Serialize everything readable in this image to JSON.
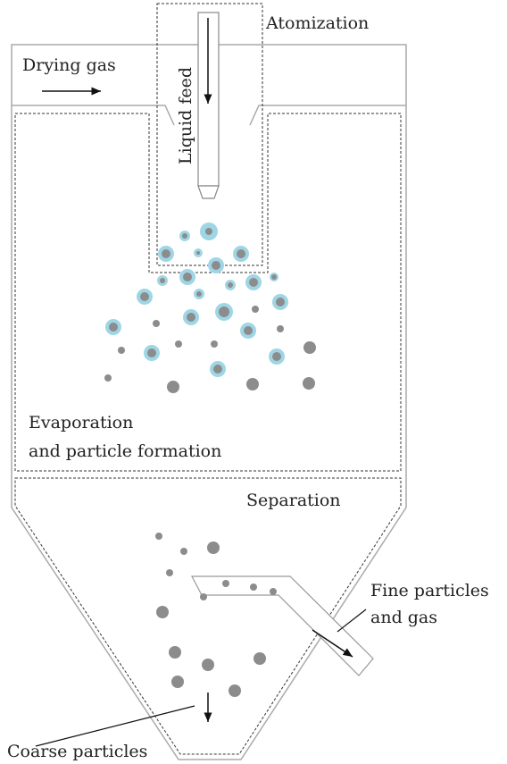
{
  "labels": {
    "atomization": "Atomization",
    "drying_gas": "Drying gas",
    "liquid_feed": "Liquid feed",
    "evaporation": [
      "Evaporation",
      "and particle formation"
    ],
    "separation": "Separation",
    "fine_particles": [
      "Fine particles",
      "and gas"
    ],
    "coarse_particles": "Coarse particles"
  }
}
